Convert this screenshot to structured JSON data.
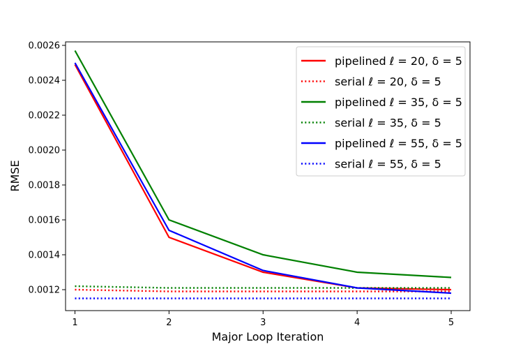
{
  "chart_data": {
    "type": "line",
    "xlabel": "Major Loop Iteration",
    "ylabel": "RMSE",
    "x": [
      1,
      2,
      3,
      4,
      5
    ],
    "xlim": [
      0.9,
      5.2
    ],
    "ylim": [
      0.00108,
      0.00262
    ],
    "xticks": [
      1,
      2,
      3,
      4,
      5
    ],
    "yticks": [
      0.0012,
      0.0014,
      0.0016,
      0.0018,
      0.002,
      0.0022,
      0.0024,
      0.0026
    ],
    "ytick_labels": [
      "0.0012",
      "0.0014",
      "0.0016",
      "0.0018",
      "0.0020",
      "0.0022",
      "0.0024",
      "0.0026"
    ],
    "grid": false,
    "legend_position": "top-right",
    "series": [
      {
        "name": "pipelined ℓ = 20, δ = 5",
        "color": "#ff0000",
        "style": "solid",
        "values": [
          0.00249,
          0.0015,
          0.0013,
          0.00121,
          0.0012
        ]
      },
      {
        "name": "serial ℓ = 20, δ = 5",
        "color": "#ff0000",
        "style": "dotted",
        "values": [
          0.0012,
          0.00119,
          0.00119,
          0.00119,
          0.00119
        ]
      },
      {
        "name": "pipelined ℓ = 35, δ = 5",
        "color": "#008000",
        "style": "solid",
        "values": [
          0.00257,
          0.0016,
          0.0014,
          0.0013,
          0.00127
        ]
      },
      {
        "name": "serial ℓ = 35, δ = 5",
        "color": "#008000",
        "style": "dotted",
        "values": [
          0.00122,
          0.00121,
          0.00121,
          0.00121,
          0.00121
        ]
      },
      {
        "name": "pipelined ℓ = 55, δ = 5",
        "color": "#0000ff",
        "style": "solid",
        "values": [
          0.0025,
          0.00154,
          0.00131,
          0.00121,
          0.00118
        ]
      },
      {
        "name": "serial ℓ = 55, δ = 5",
        "color": "#0000ff",
        "style": "dotted",
        "values": [
          0.00115,
          0.00115,
          0.00115,
          0.00115,
          0.00115
        ]
      }
    ]
  }
}
